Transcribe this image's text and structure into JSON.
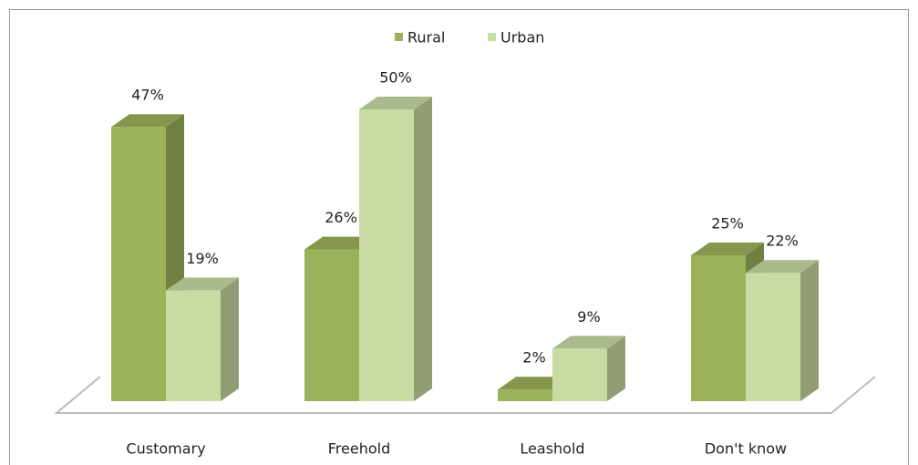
{
  "chart_data": {
    "type": "bar3d",
    "categories": [
      "Customary",
      "Freehold",
      "Leashold",
      "Don't know"
    ],
    "series": [
      {
        "name": "Rural",
        "color": "#9bb25a",
        "values": [
          47,
          26,
          2,
          25
        ],
        "value_labels": [
          "47%",
          "26%",
          "2%",
          "25%"
        ]
      },
      {
        "name": "Urban",
        "color": "#c9dba3",
        "values": [
          19,
          50,
          9,
          22
        ],
        "value_labels": [
          "19%",
          "50%",
          "9%",
          "22%"
        ]
      }
    ],
    "legend": "top"
  }
}
